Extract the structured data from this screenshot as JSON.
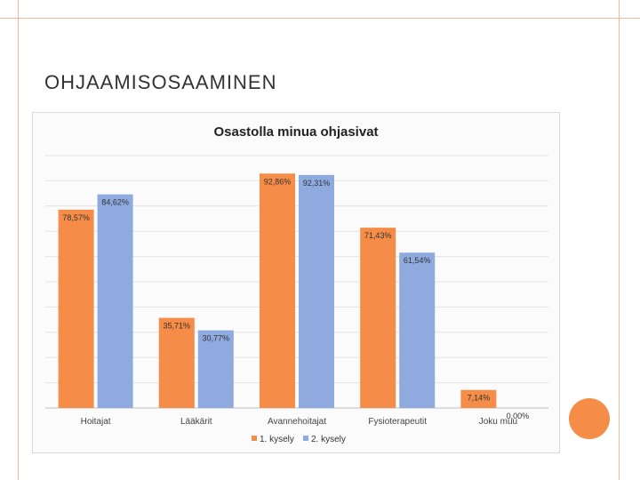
{
  "slide": {
    "title": "OHJAAMISOSAAMINEN"
  },
  "colors": {
    "series1": "#f58c47",
    "series2": "#8eaadf",
    "frame": "#f1b9a0",
    "accent_circle": "#f58c47"
  },
  "chart_data": {
    "type": "bar",
    "title": "Osastolla minua ohjasivat",
    "categories": [
      "Hoitajat",
      "Lääkärit",
      "Avannehoitajat",
      "Fysioterapeutit",
      "Joku muu"
    ],
    "series": [
      {
        "name": "1. kysely",
        "values": [
          78.57,
          35.71,
          92.86,
          71.43,
          7.14
        ],
        "labels": [
          "78,57%",
          "35,71%",
          "92,86%",
          "71,43%",
          "7,14%"
        ]
      },
      {
        "name": "2. kysely",
        "values": [
          84.62,
          30.77,
          92.31,
          61.54,
          0.0
        ],
        "labels": [
          "84,62%",
          "30,77%",
          "92,31%",
          "61,54%",
          "0,00%"
        ]
      }
    ],
    "ylim": [
      0,
      100
    ],
    "grid": true,
    "legend": "bottom"
  }
}
